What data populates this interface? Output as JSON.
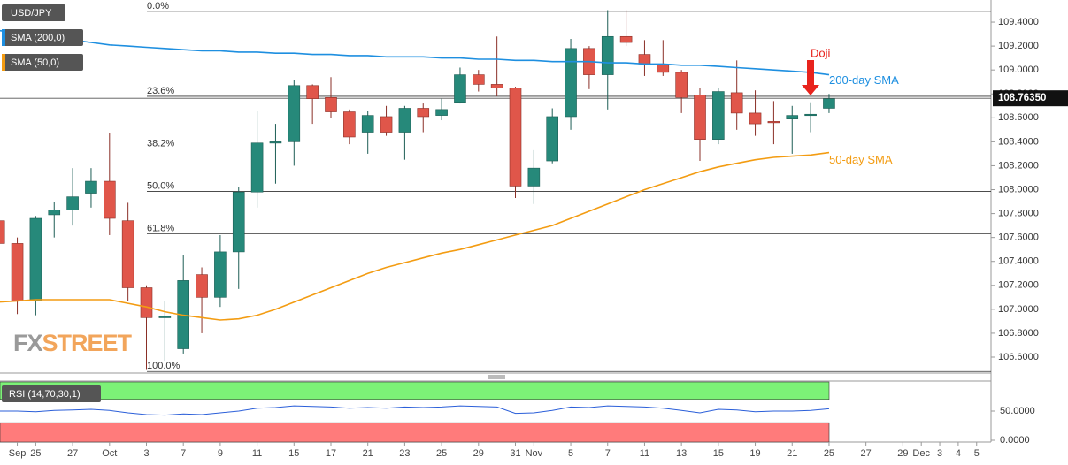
{
  "chart_data": {
    "type": "candlestick",
    "title": "USD/JPY",
    "up_color": "#26897a",
    "down_color": "#e0564a",
    "categories": [
      null,
      "Sep",
      "25",
      null,
      "27",
      null,
      "Oct",
      null,
      "3",
      null,
      "7",
      null,
      "9",
      null,
      "11",
      null,
      "15",
      null,
      "17",
      null,
      "21",
      null,
      "23",
      null,
      "25",
      null,
      "29",
      null,
      "31",
      "Nov",
      null,
      "5",
      null,
      "7",
      null,
      "11",
      null,
      "13",
      null,
      "15",
      null,
      "19",
      null,
      "21",
      null,
      "25",
      null,
      "27",
      null,
      "29",
      "Dec",
      "3",
      "4",
      "5"
    ],
    "open": [
      107.74,
      107.55,
      107.07,
      107.79,
      107.83,
      107.97,
      108.07,
      107.74,
      107.18,
      106.93,
      106.67,
      107.29,
      107.1,
      107.48,
      107.98,
      108.39,
      108.4,
      108.87,
      108.77,
      108.65,
      108.48,
      108.61,
      108.48,
      108.68,
      108.62,
      108.73,
      108.96,
      108.88,
      108.85,
      108.03,
      108.24,
      108.61,
      109.18,
      108.96,
      109.28,
      109.13,
      109.05,
      108.98,
      108.79,
      108.42,
      108.81,
      108.64,
      108.57,
      108.59,
      108.63,
      108.68,
      null,
      null,
      null,
      null,
      null,
      null,
      null,
      null
    ],
    "high": [
      107.78,
      107.6,
      107.78,
      107.9,
      108.18,
      108.18,
      108.47,
      107.89,
      107.2,
      107.07,
      107.45,
      107.35,
      107.62,
      108.02,
      108.66,
      108.55,
      108.92,
      108.88,
      108.94,
      108.67,
      108.66,
      108.7,
      108.7,
      108.72,
      108.76,
      109.02,
      109.0,
      109.28,
      108.86,
      108.33,
      108.68,
      109.26,
      109.2,
      109.5,
      109.5,
      109.25,
      109.25,
      109.0,
      108.85,
      108.85,
      109.08,
      108.83,
      108.74,
      108.7,
      108.73,
      108.8,
      null,
      null,
      null,
      null,
      null,
      null,
      null,
      null
    ],
    "low": [
      107.5,
      106.96,
      106.95,
      107.6,
      107.7,
      107.85,
      107.62,
      107.07,
      106.5,
      106.57,
      106.63,
      106.8,
      107.02,
      107.17,
      107.85,
      108.05,
      108.2,
      108.55,
      108.6,
      108.38,
      108.3,
      108.45,
      108.25,
      108.48,
      108.58,
      108.72,
      108.82,
      108.78,
      107.93,
      107.88,
      108.22,
      108.5,
      108.84,
      108.67,
      109.2,
      108.95,
      108.95,
      108.64,
      108.24,
      108.38,
      108.5,
      108.45,
      108.38,
      108.3,
      108.48,
      108.64,
      null,
      null,
      null,
      null,
      null,
      null,
      null,
      null
    ],
    "close": [
      107.55,
      107.07,
      107.76,
      107.83,
      107.94,
      108.07,
      107.76,
      107.18,
      106.93,
      106.94,
      107.24,
      107.1,
      107.48,
      107.98,
      108.39,
      108.4,
      108.87,
      108.76,
      108.65,
      108.44,
      108.62,
      108.48,
      108.68,
      108.61,
      108.67,
      108.96,
      108.88,
      108.85,
      108.03,
      108.18,
      108.61,
      109.18,
      108.96,
      109.28,
      109.23,
      109.05,
      108.98,
      108.77,
      108.42,
      108.82,
      108.64,
      108.55,
      108.56,
      108.62,
      108.63,
      108.76,
      null,
      null,
      null,
      null,
      null,
      null,
      null,
      null
    ],
    "overlays": [
      {
        "name": "SMA (200,0)",
        "label": "200-day SMA",
        "color": "#1e8fe0",
        "values": [
          109.33,
          109.31,
          109.29,
          109.27,
          109.25,
          109.23,
          109.21,
          109.2,
          109.19,
          109.18,
          109.17,
          109.16,
          109.16,
          109.15,
          109.15,
          109.14,
          109.14,
          109.13,
          109.13,
          109.12,
          109.12,
          109.11,
          109.11,
          109.11,
          109.1,
          109.1,
          109.09,
          109.09,
          109.08,
          109.08,
          109.07,
          109.07,
          109.07,
          109.06,
          109.06,
          109.05,
          109.05,
          109.04,
          109.04,
          109.03,
          109.02,
          109.01,
          109.0,
          108.99,
          108.98,
          108.96,
          null,
          null,
          null,
          null,
          null,
          null,
          null,
          null
        ]
      },
      {
        "name": "SMA (50,0)",
        "label": "50-day SMA",
        "color": "#f39c12",
        "values": [
          107.06,
          107.07,
          107.08,
          107.08,
          107.08,
          107.08,
          107.08,
          107.05,
          107.02,
          106.98,
          106.95,
          106.93,
          106.91,
          106.92,
          106.95,
          107.0,
          107.06,
          107.12,
          107.18,
          107.24,
          107.3,
          107.35,
          107.39,
          107.43,
          107.47,
          107.5,
          107.54,
          107.58,
          107.62,
          107.66,
          107.7,
          107.76,
          107.82,
          107.88,
          107.94,
          108.0,
          108.05,
          108.1,
          108.15,
          108.19,
          108.22,
          108.25,
          108.27,
          108.28,
          108.29,
          108.31,
          null,
          null,
          null,
          null,
          null,
          null,
          null,
          null
        ]
      }
    ],
    "fibonacci": [
      {
        "label": "0.0%",
        "value": 109.49
      },
      {
        "label": "23.6%",
        "value": 108.78
      },
      {
        "label": "38.2%",
        "value": 108.34
      },
      {
        "label": "50.0%",
        "value": 107.985
      },
      {
        "label": "61.8%",
        "value": 107.63
      },
      {
        "label": "100.0%",
        "value": 106.48
      }
    ],
    "last_price": {
      "value": 108.7635,
      "label": "108.76350"
    },
    "annotation": "Doji",
    "watermark": [
      "FX",
      "STREET"
    ],
    "ylim": [
      106.467,
      109.585
    ],
    "yticks": [
      {
        "value": 109.4,
        "label": "109.4000"
      },
      {
        "value": 109.2,
        "label": "109.2000"
      },
      {
        "value": 109.0,
        "label": "109.0000"
      },
      {
        "value": 108.8,
        "label": "108.8000"
      },
      {
        "value": 108.6,
        "label": "108.6000"
      },
      {
        "value": 108.4,
        "label": "108.4000"
      },
      {
        "value": 108.2,
        "label": "108.2000"
      },
      {
        "value": 108.0,
        "label": "108.0000"
      },
      {
        "value": 107.8,
        "label": "107.8000"
      },
      {
        "value": 107.6,
        "label": "107.6000"
      },
      {
        "value": 107.4,
        "label": "107.4000"
      },
      {
        "value": 107.2,
        "label": "107.2000"
      },
      {
        "value": 107.0,
        "label": "107.0000"
      },
      {
        "value": 106.8,
        "label": "106.8000"
      },
      {
        "value": 106.6,
        "label": "106.6000"
      }
    ],
    "rsi": {
      "name": "RSI (14,70,30,1)",
      "upper": 70,
      "lower": 30,
      "color": "#2b5fd9",
      "values": [
        50,
        50,
        49,
        51,
        52,
        53,
        51,
        47,
        44,
        43,
        45,
        44,
        47,
        50,
        55,
        56,
        59,
        58,
        57,
        55,
        56,
        55,
        57,
        56,
        57,
        59,
        58,
        57,
        46,
        47,
        51,
        57,
        56,
        59,
        58,
        57,
        55,
        51,
        47,
        53,
        52,
        49,
        50,
        50,
        51,
        54,
        null,
        null,
        null,
        null,
        null,
        null,
        null,
        null
      ],
      "ylim": [
        0,
        100
      ],
      "yticks": [
        {
          "value": 50,
          "label": "50.0000"
        },
        {
          "value": 0,
          "label": "0.0000"
        }
      ]
    }
  }
}
